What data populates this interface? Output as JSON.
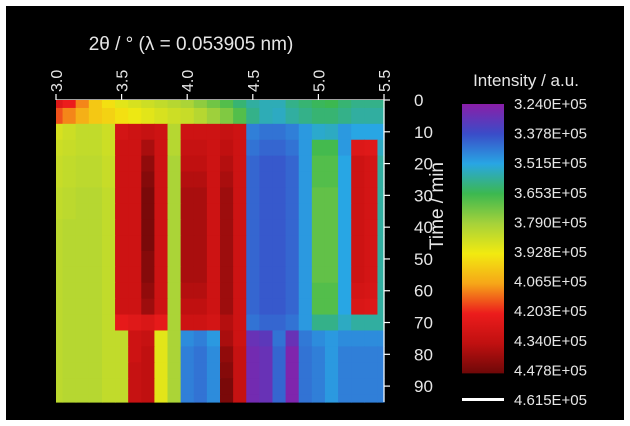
{
  "chart_data": {
    "type": "heatmap",
    "top_axis": {
      "label": "2θ / ° (λ = 0.053905 nm)",
      "range": [
        3.0,
        5.5
      ],
      "ticks": [
        "3.0",
        "3.5",
        "4.0",
        "4.5",
        "5.0",
        "5.5"
      ]
    },
    "right_axis": {
      "label": "Time / min",
      "range": [
        0,
        95
      ],
      "inverted": true,
      "ticks": [
        "0",
        "10",
        "20",
        "30",
        "40",
        "50",
        "60",
        "70",
        "80",
        "90"
      ]
    },
    "colorbar": {
      "title": "Intensity / a.u.",
      "labels": [
        "3.240E+05",
        "3.378E+05",
        "3.515E+05",
        "3.653E+05",
        "3.790E+05",
        "3.928E+05",
        "4.065E+05",
        "4.203E+05",
        "4.340E+05",
        "4.478E+05",
        "4.615E+05"
      ],
      "colors": [
        "#8a1ea8",
        "#3a4cc8",
        "#28a6e4",
        "#3cb850",
        "#a6d23a",
        "#f2ea10",
        "#f6a618",
        "#ec1c1c",
        "#c01010",
        "#6e0808",
        "#ffffff"
      ]
    },
    "colorscale": [
      {
        "v": 3.24,
        "c": "#8a1ea8"
      },
      {
        "v": 3.38,
        "c": "#3a4cc8"
      },
      {
        "v": 3.52,
        "c": "#28a6e4"
      },
      {
        "v": 3.65,
        "c": "#3cb850"
      },
      {
        "v": 3.79,
        "c": "#a6d23a"
      },
      {
        "v": 3.93,
        "c": "#f2ea10"
      },
      {
        "v": 4.07,
        "c": "#f6a618"
      },
      {
        "v": 4.2,
        "c": "#ec1c1c"
      },
      {
        "v": 4.34,
        "c": "#c01010"
      },
      {
        "v": 4.48,
        "c": "#6e0808"
      }
    ],
    "x": [
      3.0,
      3.1,
      3.2,
      3.3,
      3.4,
      3.5,
      3.6,
      3.7,
      3.8,
      3.9,
      4.0,
      4.1,
      4.2,
      4.3,
      4.4,
      4.5,
      4.6,
      4.7,
      4.8,
      4.9,
      5.0,
      5.1,
      5.2,
      5.3,
      5.4,
      5.5
    ],
    "y": [
      0,
      5,
      10,
      15,
      20,
      25,
      30,
      35,
      40,
      45,
      50,
      55,
      60,
      65,
      70,
      75,
      80,
      85,
      90,
      95
    ],
    "z": [
      [
        4.25,
        4.2,
        4.1,
        4.0,
        3.95,
        3.9,
        3.88,
        3.86,
        3.84,
        3.82,
        3.8,
        3.76,
        3.72,
        3.68,
        3.62,
        3.58,
        3.56,
        3.56,
        3.6,
        3.62,
        3.64,
        3.65,
        3.62,
        3.6,
        3.6,
        3.6
      ],
      [
        4.15,
        4.1,
        4.05,
        4.0,
        3.98,
        3.95,
        3.92,
        3.9,
        3.88,
        3.86,
        3.85,
        3.82,
        3.78,
        3.74,
        3.68,
        3.6,
        3.56,
        3.55,
        3.58,
        3.6,
        3.62,
        3.62,
        3.6,
        3.58,
        3.58,
        3.58
      ],
      [
        3.88,
        3.86,
        3.84,
        3.84,
        3.86,
        4.28,
        4.3,
        4.32,
        4.3,
        3.82,
        4.3,
        4.3,
        4.3,
        4.32,
        4.3,
        3.46,
        3.44,
        3.44,
        3.46,
        3.5,
        3.54,
        3.55,
        3.5,
        3.52,
        3.52,
        3.52
      ],
      [
        3.86,
        3.85,
        3.84,
        3.84,
        3.86,
        4.3,
        4.3,
        4.38,
        4.3,
        3.82,
        4.32,
        4.32,
        4.3,
        4.34,
        4.3,
        3.44,
        3.42,
        3.42,
        3.44,
        3.5,
        3.66,
        3.66,
        3.5,
        4.25,
        4.24,
        3.55
      ],
      [
        3.85,
        3.84,
        3.83,
        3.83,
        3.85,
        4.3,
        4.3,
        4.42,
        4.3,
        3.8,
        4.34,
        4.34,
        4.3,
        4.36,
        4.3,
        3.42,
        3.4,
        3.4,
        3.42,
        3.5,
        3.68,
        3.68,
        3.52,
        4.3,
        4.28,
        3.58
      ],
      [
        3.85,
        3.84,
        3.83,
        3.83,
        3.85,
        4.3,
        4.3,
        4.44,
        4.3,
        3.8,
        4.36,
        4.36,
        4.3,
        4.38,
        4.3,
        3.42,
        3.4,
        3.4,
        3.42,
        3.5,
        3.68,
        3.68,
        3.52,
        4.3,
        4.28,
        3.58
      ],
      [
        3.84,
        3.83,
        3.82,
        3.82,
        3.84,
        4.3,
        4.3,
        4.46,
        4.3,
        3.8,
        4.38,
        4.38,
        4.3,
        4.4,
        4.3,
        3.42,
        3.4,
        3.4,
        3.42,
        3.5,
        3.7,
        3.7,
        3.52,
        4.3,
        4.28,
        3.58
      ],
      [
        3.84,
        3.83,
        3.82,
        3.82,
        3.84,
        4.3,
        4.3,
        4.46,
        4.3,
        3.8,
        4.38,
        4.38,
        4.3,
        4.4,
        4.3,
        3.42,
        3.4,
        3.4,
        3.42,
        3.5,
        3.7,
        3.7,
        3.52,
        4.3,
        4.28,
        3.58
      ],
      [
        3.83,
        3.82,
        3.82,
        3.82,
        3.84,
        4.3,
        4.3,
        4.46,
        4.3,
        3.8,
        4.38,
        4.38,
        4.3,
        4.4,
        4.3,
        3.42,
        3.4,
        3.4,
        3.42,
        3.5,
        3.7,
        3.7,
        3.52,
        4.3,
        4.28,
        3.58
      ],
      [
        3.83,
        3.82,
        3.82,
        3.82,
        3.84,
        4.3,
        4.3,
        4.46,
        4.3,
        3.8,
        4.38,
        4.38,
        4.3,
        4.4,
        4.3,
        3.42,
        3.4,
        3.4,
        3.42,
        3.5,
        3.7,
        3.7,
        3.52,
        4.3,
        4.28,
        3.58
      ],
      [
        3.83,
        3.82,
        3.82,
        3.82,
        3.84,
        4.3,
        4.3,
        4.44,
        4.3,
        3.8,
        4.38,
        4.38,
        4.3,
        4.4,
        4.3,
        3.42,
        3.4,
        3.4,
        3.42,
        3.5,
        3.7,
        3.7,
        3.52,
        4.3,
        4.28,
        3.58
      ],
      [
        3.83,
        3.82,
        3.82,
        3.82,
        3.84,
        4.3,
        4.3,
        4.44,
        4.3,
        3.8,
        4.38,
        4.38,
        4.3,
        4.4,
        4.3,
        3.42,
        3.4,
        3.4,
        3.42,
        3.5,
        3.7,
        3.7,
        3.52,
        4.3,
        4.28,
        3.58
      ],
      [
        3.83,
        3.82,
        3.82,
        3.82,
        3.84,
        4.3,
        4.3,
        4.42,
        4.3,
        3.8,
        4.36,
        4.36,
        4.3,
        4.4,
        4.3,
        3.42,
        3.4,
        3.4,
        3.42,
        3.5,
        3.68,
        3.68,
        3.52,
        4.28,
        4.27,
        3.58
      ],
      [
        3.83,
        3.82,
        3.82,
        3.82,
        3.84,
        4.3,
        4.3,
        4.4,
        4.3,
        3.8,
        4.34,
        4.34,
        4.3,
        4.4,
        4.3,
        3.42,
        3.4,
        3.4,
        3.42,
        3.5,
        3.68,
        3.68,
        3.52,
        4.26,
        4.25,
        3.58
      ],
      [
        3.83,
        3.82,
        3.82,
        3.82,
        3.84,
        4.22,
        4.24,
        4.26,
        4.22,
        3.8,
        4.3,
        4.3,
        4.28,
        4.36,
        4.3,
        3.44,
        3.42,
        3.42,
        3.44,
        3.5,
        3.6,
        3.6,
        3.55,
        3.58,
        3.58,
        3.58
      ],
      [
        3.83,
        3.82,
        3.82,
        3.82,
        3.84,
        3.84,
        4.3,
        4.32,
        3.9,
        3.8,
        3.48,
        3.46,
        3.5,
        4.38,
        4.3,
        3.3,
        3.32,
        3.44,
        3.3,
        3.45,
        3.48,
        3.5,
        3.48,
        3.48,
        3.48,
        3.48
      ],
      [
        3.83,
        3.82,
        3.82,
        3.82,
        3.84,
        3.84,
        4.3,
        4.34,
        3.9,
        3.8,
        3.46,
        3.44,
        3.48,
        4.42,
        4.32,
        3.28,
        3.3,
        3.42,
        3.26,
        3.44,
        3.46,
        3.5,
        3.46,
        3.46,
        3.46,
        3.46
      ],
      [
        3.83,
        3.82,
        3.82,
        3.82,
        3.84,
        3.84,
        4.32,
        4.34,
        3.9,
        3.8,
        3.46,
        3.44,
        3.48,
        4.44,
        4.32,
        3.28,
        3.3,
        3.42,
        3.26,
        3.44,
        3.46,
        3.5,
        3.46,
        3.46,
        3.46,
        3.46
      ],
      [
        3.83,
        3.82,
        3.82,
        3.82,
        3.84,
        3.84,
        4.32,
        4.34,
        3.9,
        3.8,
        3.46,
        3.44,
        3.48,
        4.46,
        4.32,
        3.28,
        3.3,
        3.42,
        3.26,
        3.44,
        3.46,
        3.5,
        3.46,
        3.46,
        3.46,
        3.46
      ],
      [
        3.83,
        3.82,
        3.82,
        3.82,
        3.84,
        3.84,
        4.32,
        4.34,
        3.9,
        3.8,
        3.46,
        3.44,
        3.48,
        4.46,
        4.32,
        3.28,
        3.3,
        3.42,
        3.26,
        3.44,
        3.46,
        3.5,
        3.46,
        3.46,
        3.46,
        3.46
      ]
    ]
  }
}
